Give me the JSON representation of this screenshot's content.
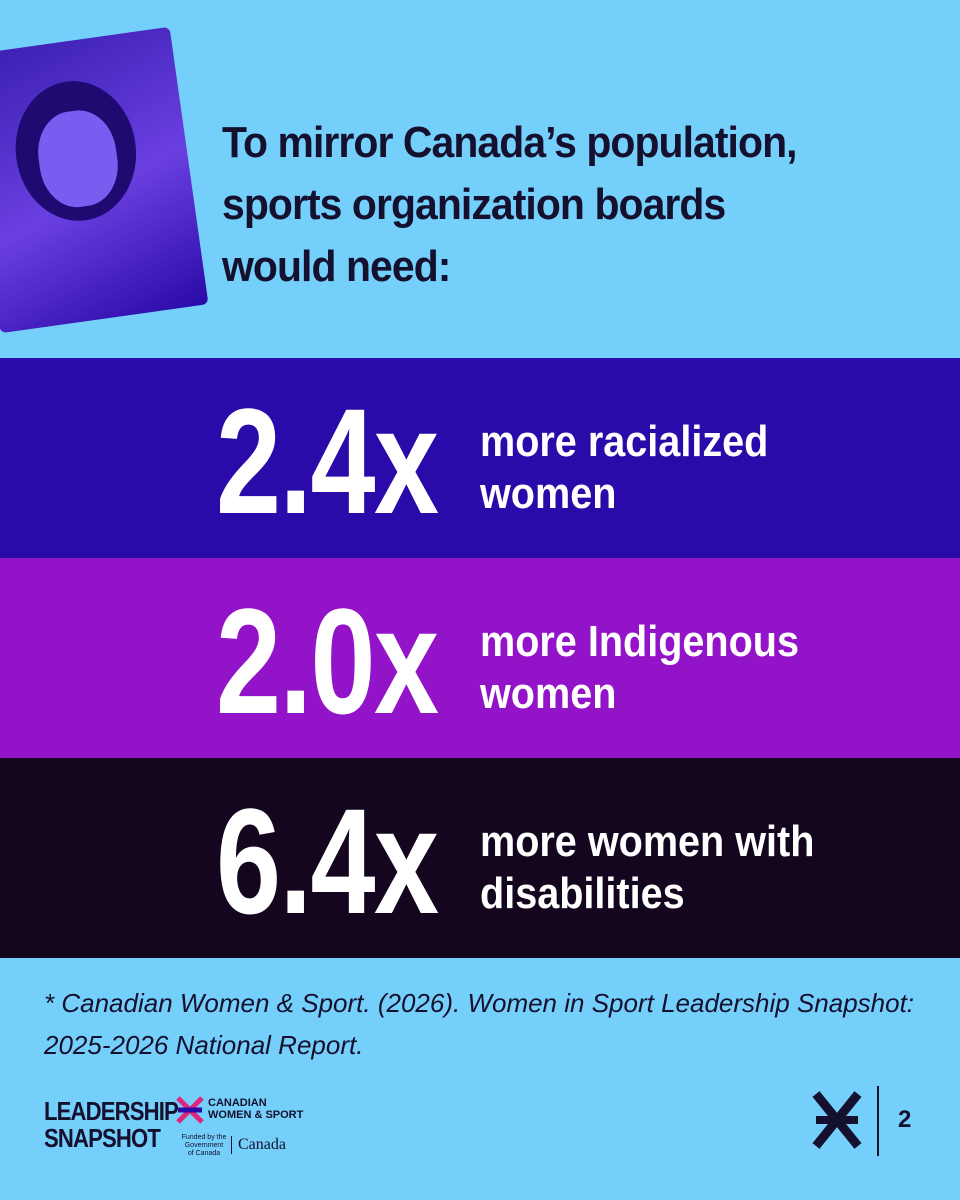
{
  "header": {
    "title": [
      "To mirror Canada’s population,",
      "sports organization boards",
      "would need:"
    ]
  },
  "stats": [
    {
      "value": "2.4x",
      "label": [
        "more racialized",
        "women"
      ]
    },
    {
      "value": "2.0x",
      "label": [
        "more Indigenous",
        "women"
      ]
    },
    {
      "value": "6.4x",
      "label": [
        "more women with",
        "disabilities"
      ]
    }
  ],
  "footnote": [
    "* Canadian Women & Sport. (2026). Women in Sport Leadership Snapshot:",
    "2025-2026 National Report."
  ],
  "footer": {
    "brand": [
      "LEADERSHIP",
      "SNAPSHOT"
    ],
    "partner": [
      "CANADIAN",
      "WOMEN & SPORT"
    ],
    "funding": [
      "Funded by the",
      "Government",
      "of Canada"
    ],
    "canada": "Canada",
    "page": "2"
  }
}
